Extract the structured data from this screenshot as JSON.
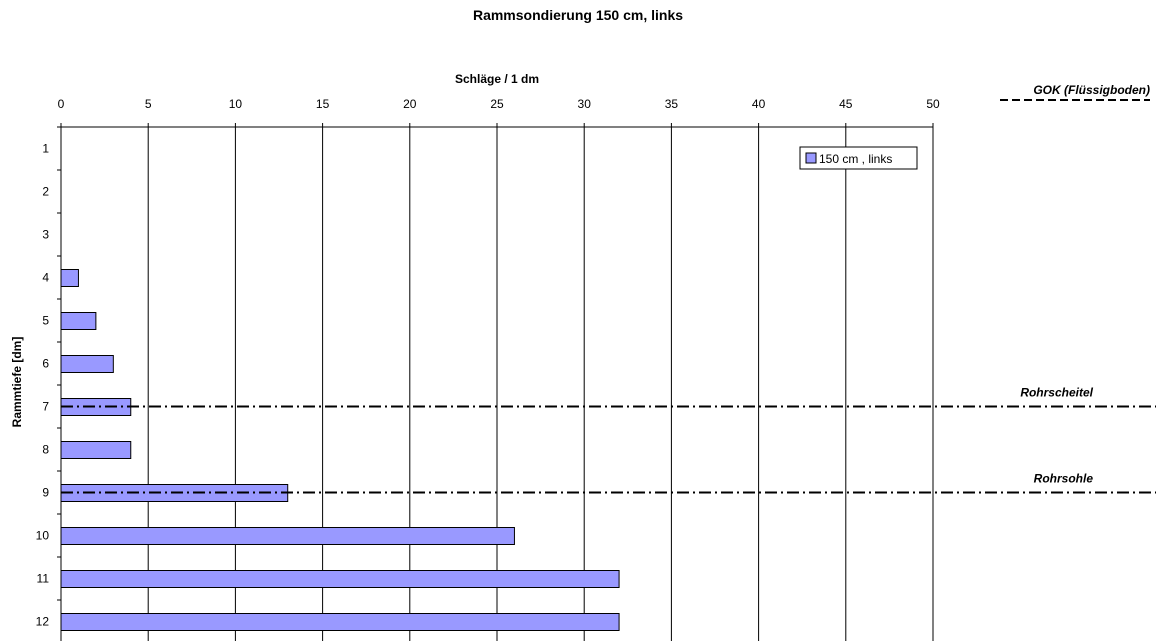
{
  "chart_data": {
    "type": "bar",
    "orientation": "horizontal",
    "title": "Rammsondierung 150 cm, links",
    "xlabel": "Schläge / 1 dm",
    "ylabel": "Rammtiefe [dm]",
    "xlim": [
      0,
      50
    ],
    "x_ticks": [
      "0",
      "5",
      "10",
      "15",
      "20",
      "25",
      "30",
      "35",
      "40",
      "45",
      "50"
    ],
    "categories": [
      "1",
      "2",
      "3",
      "4",
      "5",
      "6",
      "7",
      "8",
      "9",
      "10",
      "11",
      "12"
    ],
    "series": [
      {
        "name": "150 cm , links",
        "values": [
          0,
          0,
          0,
          1,
          2,
          3,
          4,
          4,
          13,
          26,
          32,
          32
        ]
      }
    ],
    "grid": "vertical",
    "legend_position": "top-right",
    "colors": {
      "bar_fill": "#9999ff",
      "bar_stroke": "#000000",
      "grid": "#000000"
    },
    "reference_lines": [
      {
        "label": "GOK (Flüssigboden)",
        "style": "dashed",
        "depth": 0
      },
      {
        "label": "Rohrscheitel",
        "style": "dash-dot",
        "depth": 6.5
      },
      {
        "label": "Rohrsohle",
        "style": "dash-dot",
        "depth": 8.5
      }
    ]
  }
}
